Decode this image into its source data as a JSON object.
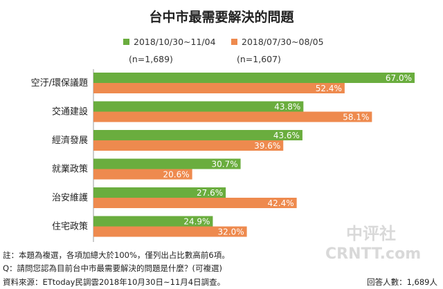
{
  "title": "台中市最需要解決的問題",
  "colors": {
    "series1": "#6aad3e",
    "series2": "#ee8a4e",
    "axis": "#9a9a9a",
    "watermark": "#d9d9d9"
  },
  "chart_data": {
    "type": "bar",
    "orientation": "horizontal",
    "title": "台中市最需要解決的問題",
    "categories": [
      "空汙/環保議題",
      "交通建設",
      "經濟發展",
      "就業政策",
      "治安維護",
      "住宅政策"
    ],
    "series": [
      {
        "name": "2018/10/30~11/04",
        "sample": "(n=1,689)",
        "values": [
          67.0,
          43.8,
          43.6,
          30.7,
          27.6,
          24.9
        ],
        "labels": [
          "67.0%",
          "43.8%",
          "43.6%",
          "30.7%",
          "27.6%",
          "24.9%"
        ]
      },
      {
        "name": "2018/07/30~08/05",
        "sample": "(n=1,607)",
        "values": [
          52.4,
          58.1,
          39.6,
          20.6,
          42.4,
          32.0
        ],
        "labels": [
          "52.4%",
          "58.1%",
          "39.6%",
          "20.6%",
          "42.4%",
          "32.0%"
        ]
      }
    ],
    "xlim": [
      0,
      67.0
    ],
    "legend": "top",
    "grid": false
  },
  "notes": {
    "note1": "註：本題為複選，各項加總大於100%，僅列出占比數高前6項。",
    "note2": "Q：請問您認為目前台中市最需要解決的問題是什麼？(可複選)",
    "note3": "資料來源：ETtoday民調雲2018年10月30日~11月4日調查。",
    "sample": "回答人數：1,689人"
  },
  "watermark": {
    "line1": "中评社",
    "line2": "CRNTT.com"
  }
}
